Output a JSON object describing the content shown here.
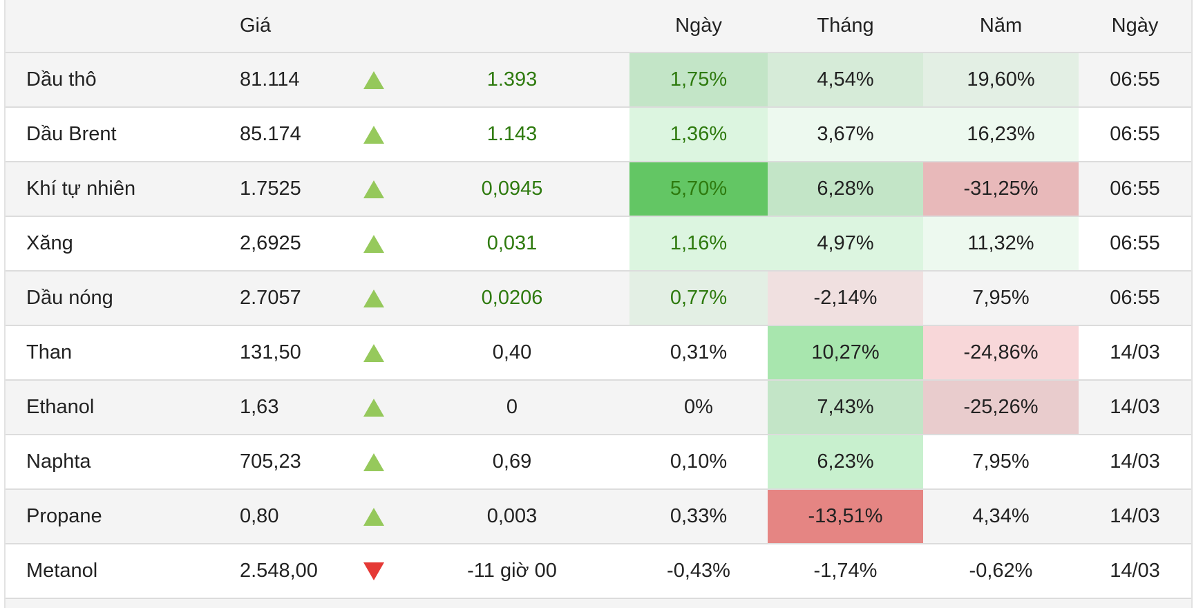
{
  "header": {
    "price": "Giá",
    "day": "Ngày",
    "month": "Tháng",
    "year": "Năm",
    "date": "Ngày"
  },
  "colors": {
    "up_arrow": "#8bc34a",
    "down_arrow": "#e53935",
    "positive_change_text": "#2e7a0e"
  },
  "rows": [
    {
      "name": "Dầu thô",
      "price": "81.114",
      "direction": "up",
      "change": "1.393",
      "change_color": "#2e7a0e",
      "day": "1,75%",
      "day_color": "#2e7a0e",
      "day_bg": "#c3e5c7",
      "month": "4,54%",
      "month_bg": "#d6ebd8",
      "year": "19,60%",
      "year_bg": "#e3efe4",
      "time": "06:55"
    },
    {
      "name": "Dầu Brent",
      "price": "85.174",
      "direction": "up",
      "change": "1.143",
      "change_color": "#2e7a0e",
      "day": "1,36%",
      "day_color": "#2e7a0e",
      "day_bg": "#dcf5e0",
      "month": "3,67%",
      "month_bg": "#edf9ef",
      "year": "16,23%",
      "year_bg": "#edf9ef",
      "time": "06:55"
    },
    {
      "name": "Khí tự nhiên",
      "price": "1.7525",
      "direction": "up",
      "change": "0,0945",
      "change_color": "#2e7a0e",
      "day": "5,70%",
      "day_color": "#2e7a0e",
      "day_bg": "#63c664",
      "month": "6,28%",
      "month_bg": "#c3e5c7",
      "year": "-31,25%",
      "year_bg": "#e8b9ba",
      "time": "06:55"
    },
    {
      "name": "Xăng",
      "price": "2,6925",
      "direction": "up",
      "change": "0,031",
      "change_color": "#2e7a0e",
      "day": "1,16%",
      "day_color": "#2e7a0e",
      "day_bg": "#dcf5e0",
      "month": "4,97%",
      "month_bg": "#dcf5e0",
      "year": "11,32%",
      "year_bg": "#edf9ef",
      "time": "06:55"
    },
    {
      "name": "Dầu nóng",
      "price": "2.7057",
      "direction": "up",
      "change": "0,0206",
      "change_color": "#2e7a0e",
      "day": "0,77%",
      "day_color": "#2e7a0e",
      "day_bg": "#e3efe4",
      "month": "-2,14%",
      "month_bg": "#f0e0e0",
      "year": "7,95%",
      "year_bg": "",
      "time": "06:55"
    },
    {
      "name": "Than",
      "price": "131,50",
      "direction": "up",
      "change": "0,40",
      "change_color": "",
      "day": "0,31%",
      "day_color": "",
      "day_bg": "",
      "month": "10,27%",
      "month_bg": "#a8e6ae",
      "year": "-24,86%",
      "year_bg": "#f8d7d9",
      "time": "14/03"
    },
    {
      "name": "Ethanol",
      "price": "1,63",
      "direction": "up",
      "change": "0",
      "change_color": "",
      "day": "0%",
      "day_color": "",
      "day_bg": "",
      "month": "7,43%",
      "month_bg": "#c3e5c7",
      "year": "-25,26%",
      "year_bg": "#e9cccd",
      "time": "14/03"
    },
    {
      "name": "Naphta",
      "price": "705,23",
      "direction": "up",
      "change": "0,69",
      "change_color": "",
      "day": "0,10%",
      "day_color": "",
      "day_bg": "",
      "month": "6,23%",
      "month_bg": "#c8f0ce",
      "year": "7,95%",
      "year_bg": "",
      "time": "14/03"
    },
    {
      "name": "Propane",
      "price": "0,80",
      "direction": "up",
      "change": "0,003",
      "change_color": "",
      "day": "0,33%",
      "day_color": "",
      "day_bg": "",
      "month": "-13,51%",
      "month_bg": "#e58583",
      "year": "4,34%",
      "year_bg": "",
      "time": "14/03"
    },
    {
      "name": "Metanol",
      "price": "2.548,00",
      "direction": "down",
      "change": "-11 giờ 00",
      "change_color": "",
      "day": "-0,43%",
      "day_color": "",
      "day_bg": "",
      "month": "-1,74%",
      "month_bg": "",
      "year": "-0,62%",
      "year_bg": "",
      "time": "14/03"
    }
  ]
}
